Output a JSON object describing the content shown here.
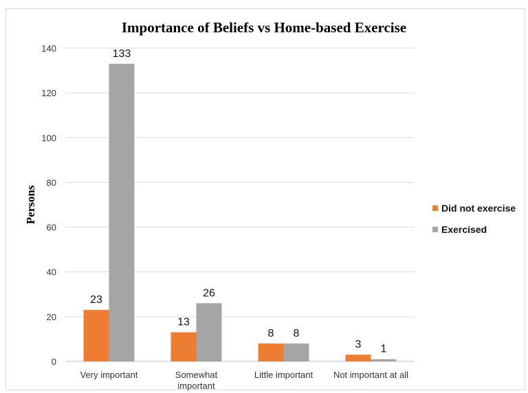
{
  "chart_data": {
    "type": "bar",
    "title": "Importance of Beliefs vs Home-based Exercise",
    "ylabel": "Persons",
    "xlabel": "",
    "ylim": [
      0,
      140
    ],
    "yticks": [
      "0",
      "20",
      "40",
      "60",
      "80",
      "100",
      "120",
      "140"
    ],
    "grid": true,
    "legend_position": "right",
    "categories": [
      [
        "Very important"
      ],
      [
        "Somewhat",
        "important"
      ],
      [
        "Little important"
      ],
      [
        "Not important at all"
      ]
    ],
    "series": [
      {
        "name": "Did not exercise",
        "color": "#ed7d31",
        "values": [
          23,
          13,
          8,
          3
        ]
      },
      {
        "name": "Exercised",
        "color": "#a5a5a5",
        "values": [
          133,
          26,
          8,
          1
        ]
      }
    ]
  }
}
